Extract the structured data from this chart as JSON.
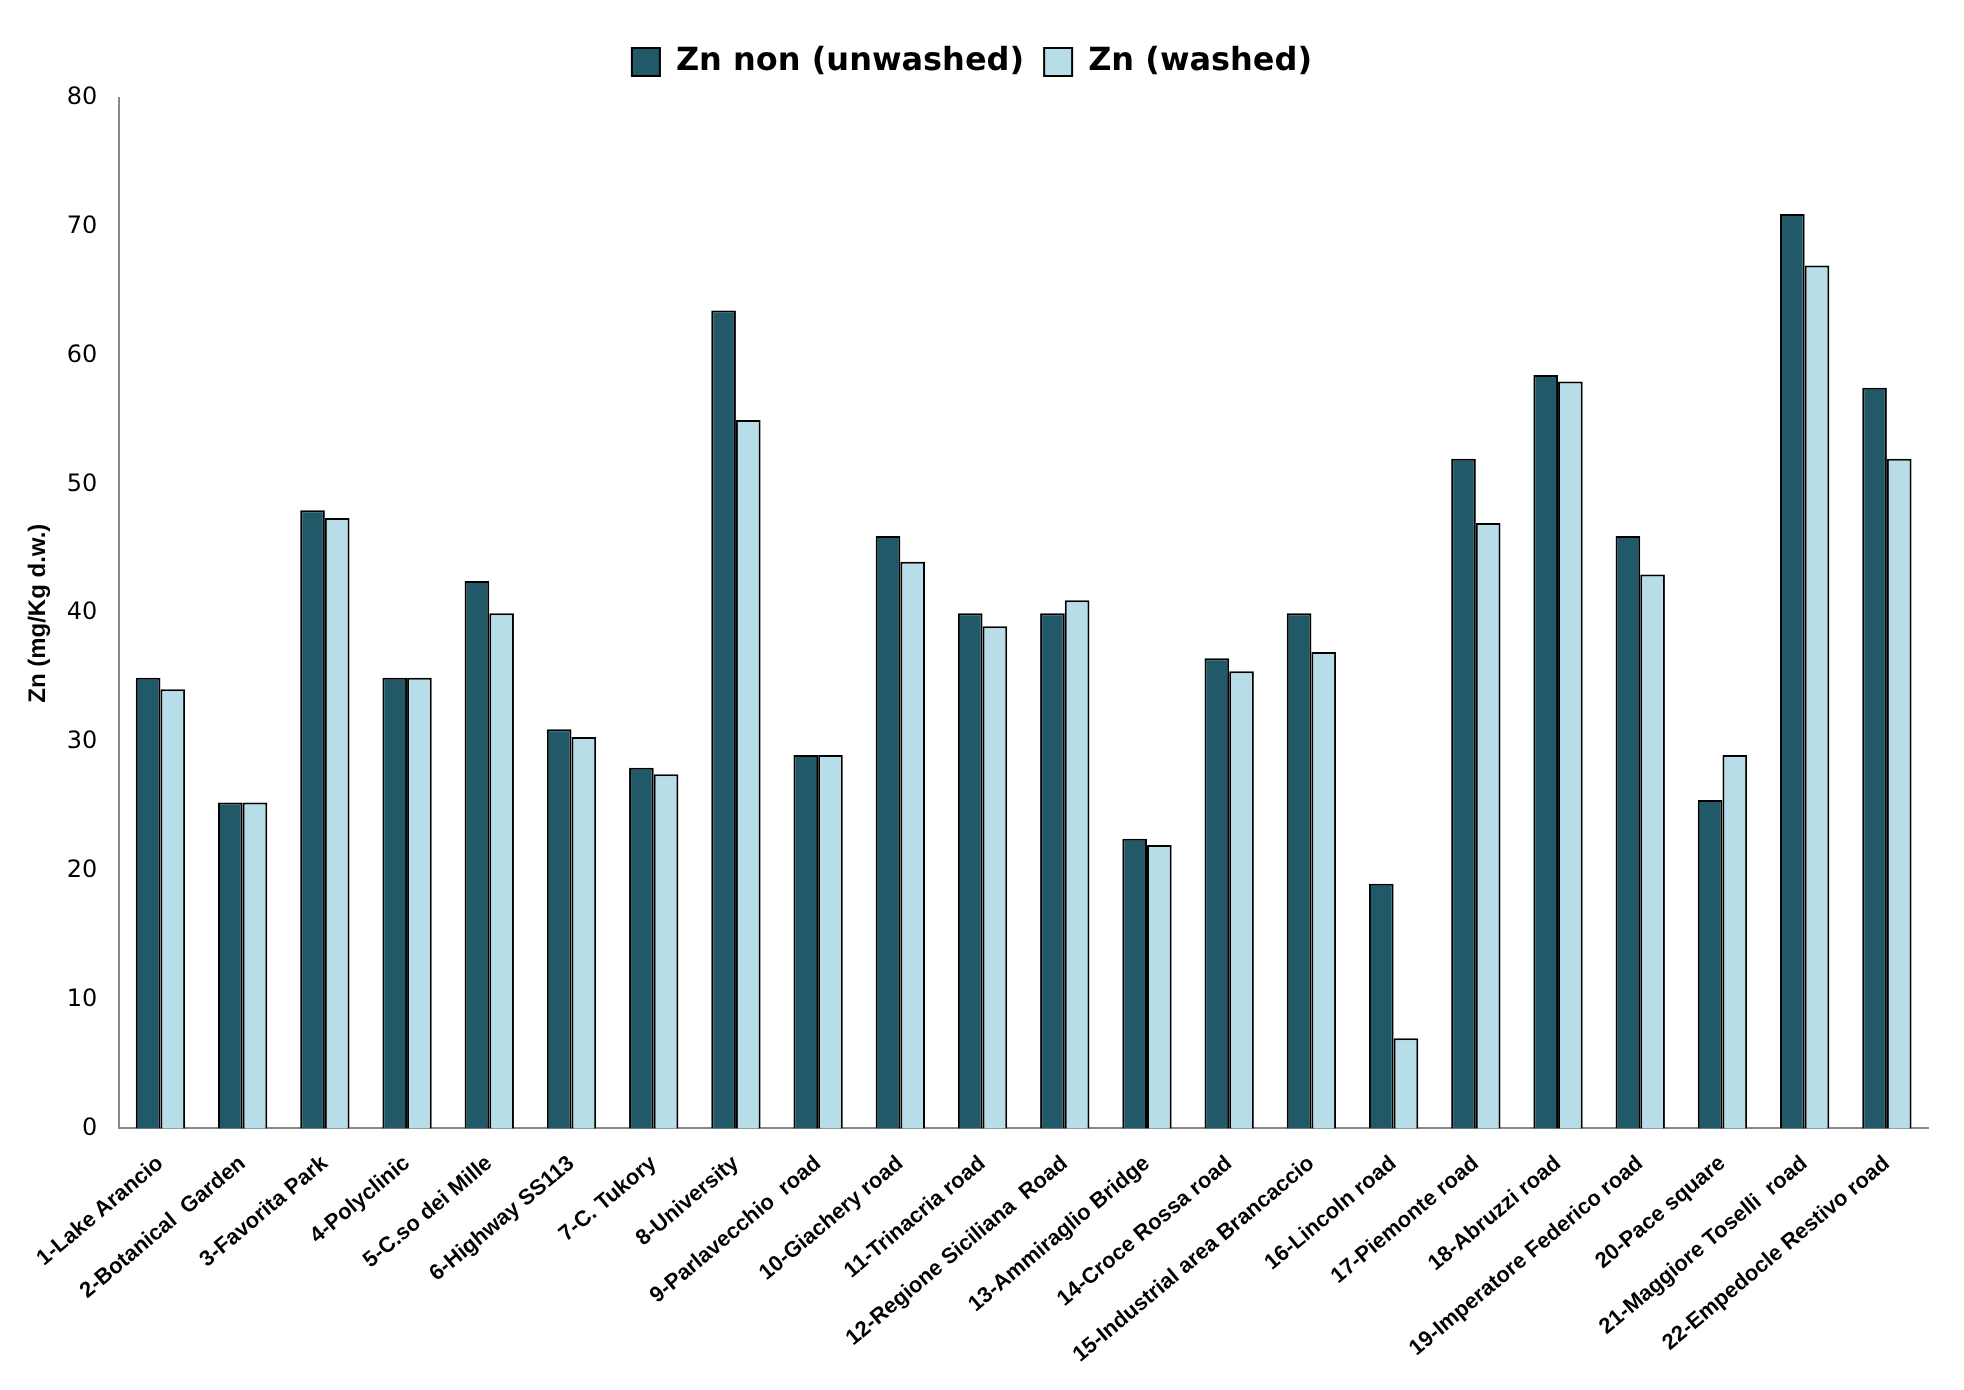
{
  "chart_data": {
    "type": "bar",
    "ylabel": "Zn (mg/Kg d.w.)",
    "categories": [
      "1-Lake Arancio",
      "2-Botanical  Garden",
      "3-Favorita Park",
      "4-Polyclinic",
      "5-C.so dei Mille",
      "6-Highway SS113",
      "7-C. Tukory",
      "8-University",
      "9-Parlavecchio  road",
      "10-Giachery road",
      "11-Trinacria road",
      "12-Regione Siciliana  Road",
      "13-Ammiraglio Bridge",
      "14-Croce Rossa road",
      "15-Industrial area Brancaccio",
      "16-Lincoln road",
      "17-Piemonte road",
      "18-Abruzzi road",
      "19-Imperatore Federico road",
      "20-Pace square",
      "21-Maggiore Toselli  road",
      "22-Empedocle Restivo road"
    ],
    "series": [
      {
        "name": "Zn non (unwashed)",
        "color": "#215968",
        "values": [
          35,
          25.3,
          48,
          35,
          42.5,
          31,
          28,
          63.5,
          29,
          46,
          40,
          40,
          22.5,
          36.5,
          40,
          19,
          52,
          58.5,
          46,
          25.5,
          71,
          57.5
        ]
      },
      {
        "name": "Zn (washed)",
        "color": "#b7dee8",
        "values": [
          34.1,
          25.3,
          47.4,
          35,
          40,
          30.4,
          27.5,
          55,
          29,
          44,
          39,
          41,
          22,
          35.5,
          37,
          7,
          47,
          58,
          43,
          29,
          67,
          52
        ]
      }
    ],
    "ylim": [
      0,
      80
    ],
    "yticks": [
      0,
      10,
      20,
      30,
      40,
      50,
      60,
      70,
      80
    ],
    "grid": false,
    "legend": "top"
  }
}
